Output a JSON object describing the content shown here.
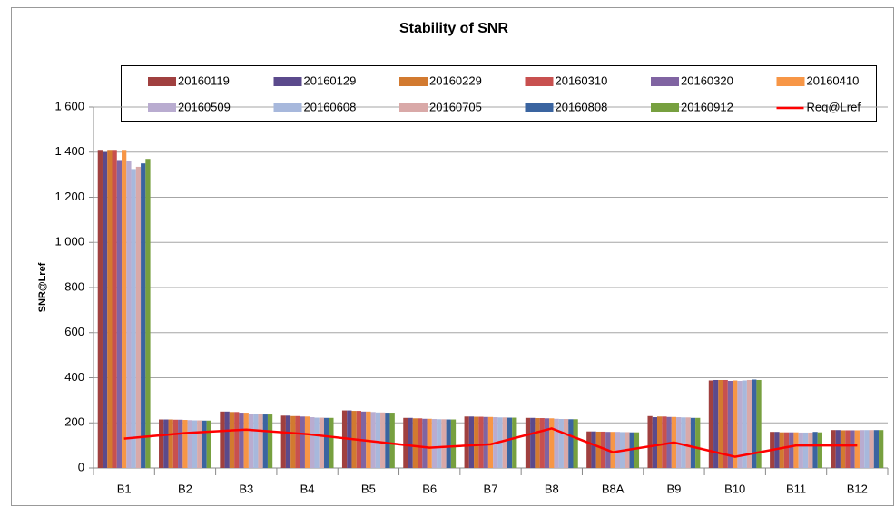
{
  "chart_data": {
    "type": "bar",
    "title": "Stability of SNR",
    "y_label": "SNR@Lref",
    "categories": [
      "B1",
      "B2",
      "B3",
      "B4",
      "B5",
      "B6",
      "B7",
      "B8",
      "B8A",
      "B9",
      "B10",
      "B11",
      "B12"
    ],
    "ylim": [
      0,
      1600
    ],
    "yticks": [
      0,
      200,
      400,
      600,
      800,
      {
        "value": 1000,
        "label": "1 000"
      },
      {
        "value": 1200,
        "label": "1 200"
      },
      {
        "value": 1400,
        "label": "1 400"
      },
      {
        "value": 1600,
        "label": "1 600"
      }
    ],
    "grid": true,
    "series": [
      {
        "name": "20160119",
        "color": "#a0403f",
        "values": [
          1410,
          215,
          250,
          232,
          255,
          222,
          228,
          222,
          162,
          230,
          388,
          160,
          168
        ]
      },
      {
        "name": "20160129",
        "color": "#5b4a8c",
        "values": [
          1400,
          215,
          250,
          232,
          255,
          222,
          228,
          222,
          162,
          225,
          390,
          160,
          168
        ]
      },
      {
        "name": "20160229",
        "color": "#d27a30",
        "values": [
          1410,
          215,
          248,
          230,
          253,
          220,
          227,
          221,
          161,
          228,
          390,
          158,
          167
        ]
      },
      {
        "name": "20160310",
        "color": "#c8504f",
        "values": [
          1410,
          214,
          248,
          230,
          253,
          220,
          227,
          221,
          161,
          228,
          390,
          158,
          167
        ]
      },
      {
        "name": "20160320",
        "color": "#8064a2",
        "values": [
          1365,
          214,
          245,
          228,
          250,
          218,
          226,
          220,
          160,
          226,
          386,
          158,
          167
        ]
      },
      {
        "name": "20160410",
        "color": "#f79646",
        "values": [
          1410,
          213,
          245,
          228,
          250,
          218,
          226,
          220,
          160,
          226,
          388,
          158,
          167
        ]
      },
      {
        "name": "20160509",
        "color": "#b9acd0",
        "values": [
          1360,
          212,
          240,
          225,
          248,
          217,
          225,
          218,
          160,
          225,
          386,
          157,
          168
        ]
      },
      {
        "name": "20160608",
        "color": "#a7b8dc",
        "values": [
          1325,
          211,
          238,
          223,
          246,
          216,
          224,
          217,
          159,
          224,
          388,
          157,
          168
        ]
      },
      {
        "name": "20160705",
        "color": "#d9a9a8",
        "values": [
          1335,
          211,
          238,
          223,
          246,
          216,
          224,
          217,
          159,
          224,
          390,
          157,
          168
        ]
      },
      {
        "name": "20160808",
        "color": "#3a64a0",
        "values": [
          1350,
          210,
          237,
          222,
          245,
          215,
          223,
          216,
          158,
          222,
          392,
          160,
          168
        ]
      },
      {
        "name": "20160912",
        "color": "#77a03f",
        "values": [
          1370,
          210,
          237,
          222,
          245,
          215,
          223,
          216,
          158,
          222,
          390,
          158,
          168
        ]
      },
      {
        "name": "Req@Lref",
        "type": "line",
        "color": "#ff0000",
        "values": [
          130,
          155,
          170,
          150,
          120,
          90,
          105,
          175,
          70,
          113,
          50,
          100,
          100
        ]
      }
    ]
  }
}
